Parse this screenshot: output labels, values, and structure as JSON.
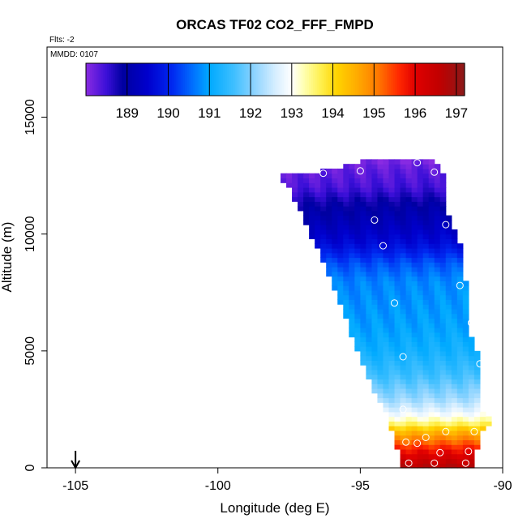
{
  "chart_data": {
    "type": "heatmap",
    "title": "ORCAS TF02 CO2_FFF_FMPD",
    "flights_note": "Flts: -2",
    "date_note": "MMDD: 0107",
    "xlabel": "Longitude (deg E)",
    "ylabel": "Altitude (m)",
    "xlim": [
      -106,
      -90
    ],
    "ylim": [
      0,
      18000
    ],
    "x_ticks": [
      -105,
      -100,
      -95,
      -90
    ],
    "x_tick_labels": [
      "-105",
      "-100",
      "-95",
      "-90"
    ],
    "y_ticks": [
      0,
      5000,
      10000,
      15000
    ],
    "y_tick_labels": [
      "0",
      "5000",
      "10000",
      "15000"
    ],
    "colorbar": {
      "range": [
        188,
        197.2
      ],
      "ticks": [
        189,
        190,
        191,
        192,
        193,
        194,
        195,
        196,
        197
      ],
      "tick_labels": [
        "189",
        "190",
        "191",
        "192",
        "193",
        "194",
        "195",
        "196",
        "197"
      ],
      "color_stops": [
        [
          188.0,
          "#8a2be2"
        ],
        [
          188.5,
          "#3b0fd8"
        ],
        [
          188.9,
          "#0000a0"
        ],
        [
          189.5,
          "#0000cd"
        ],
        [
          190.1,
          "#0028f0"
        ],
        [
          190.6,
          "#0070ff"
        ],
        [
          191.0,
          "#00aaff"
        ],
        [
          191.6,
          "#3fbfff"
        ],
        [
          192.1,
          "#8fd4ff"
        ],
        [
          192.6,
          "#d6eeff"
        ],
        [
          193.0,
          "#ffffff"
        ],
        [
          193.3,
          "#ffffb0"
        ],
        [
          193.7,
          "#fff050"
        ],
        [
          194.1,
          "#ffd400"
        ],
        [
          194.6,
          "#ffaa00"
        ],
        [
          195.1,
          "#ff7800"
        ],
        [
          195.6,
          "#ff2800"
        ],
        [
          196.0,
          "#e00000"
        ],
        [
          196.6,
          "#c00000"
        ],
        [
          197.2,
          "#8b1a1a"
        ]
      ]
    },
    "region_left_edge": [
      [
        0,
        -93.5
      ],
      [
        800,
        -93.6
      ],
      [
        1600,
        -93.8
      ],
      [
        2400,
        -94.0
      ],
      [
        3200,
        -94.4
      ],
      [
        4000,
        -94.7
      ],
      [
        4800,
        -94.9
      ],
      [
        5600,
        -95.2
      ],
      [
        6400,
        -95.4
      ],
      [
        7200,
        -95.7
      ],
      [
        8000,
        -95.9
      ],
      [
        8800,
        -96.2
      ],
      [
        9600,
        -96.5
      ],
      [
        10400,
        -96.8
      ],
      [
        11200,
        -97.1
      ],
      [
        12000,
        -97.4
      ],
      [
        12400,
        -97.8
      ],
      [
        12600,
        -96.6
      ],
      [
        12800,
        -96.0
      ],
      [
        13000,
        -95.0
      ]
    ],
    "region_right_edge": [
      [
        0,
        -91.2
      ],
      [
        800,
        -91.0
      ],
      [
        1600,
        -90.8
      ],
      [
        2000,
        -90.5
      ],
      [
        2400,
        -90.8
      ],
      [
        3200,
        -90.8
      ],
      [
        4000,
        -90.8
      ],
      [
        4800,
        -90.9
      ],
      [
        5600,
        -91.2
      ],
      [
        6400,
        -91.2
      ],
      [
        7200,
        -91.3
      ],
      [
        8000,
        -91.4
      ],
      [
        8800,
        -91.5
      ],
      [
        9600,
        -91.6
      ],
      [
        10400,
        -91.9
      ],
      [
        11200,
        -92.1
      ],
      [
        12000,
        -92.1
      ],
      [
        12800,
        -92.2
      ],
      [
        13200,
        -92.6
      ]
    ],
    "value_profile": [
      [
        0,
        196.8
      ],
      [
        400,
        196.3
      ],
      [
        800,
        195.8
      ],
      [
        1200,
        195.1
      ],
      [
        1600,
        194.4
      ],
      [
        2000,
        193.4
      ],
      [
        2400,
        192.8
      ],
      [
        3000,
        192.2
      ],
      [
        4000,
        191.6
      ],
      [
        5000,
        191.2
      ],
      [
        6000,
        191.0
      ],
      [
        7000,
        190.9
      ],
      [
        8000,
        190.8
      ],
      [
        8800,
        190.4
      ],
      [
        9600,
        189.7
      ],
      [
        10400,
        189.3
      ],
      [
        11200,
        189.0
      ],
      [
        12000,
        188.5
      ],
      [
        12800,
        188.3
      ],
      [
        13200,
        188.1
      ]
    ],
    "sample_points": [
      [
        -93.3,
        200
      ],
      [
        -92.4,
        200
      ],
      [
        -91.3,
        200
      ],
      [
        -93.4,
        1100
      ],
      [
        -92.0,
        1550
      ],
      [
        -91.0,
        1550
      ],
      [
        -92.2,
        650
      ],
      [
        -91.2,
        700
      ],
      [
        -93.0,
        1050
      ],
      [
        -92.7,
        1300
      ],
      [
        -93.5,
        2500
      ],
      [
        -93.5,
        4750
      ],
      [
        -93.8,
        7050
      ],
      [
        -91.5,
        7800
      ],
      [
        -91.1,
        6200
      ],
      [
        -90.8,
        4450
      ],
      [
        -94.2,
        9500
      ],
      [
        -94.5,
        10600
      ],
      [
        -92.0,
        10400
      ],
      [
        -96.3,
        12600
      ],
      [
        -95.0,
        12700
      ],
      [
        -93.0,
        13050
      ],
      [
        -92.4,
        12650
      ]
    ],
    "annotation_arrow": {
      "x": -105,
      "direction": "down"
    }
  }
}
